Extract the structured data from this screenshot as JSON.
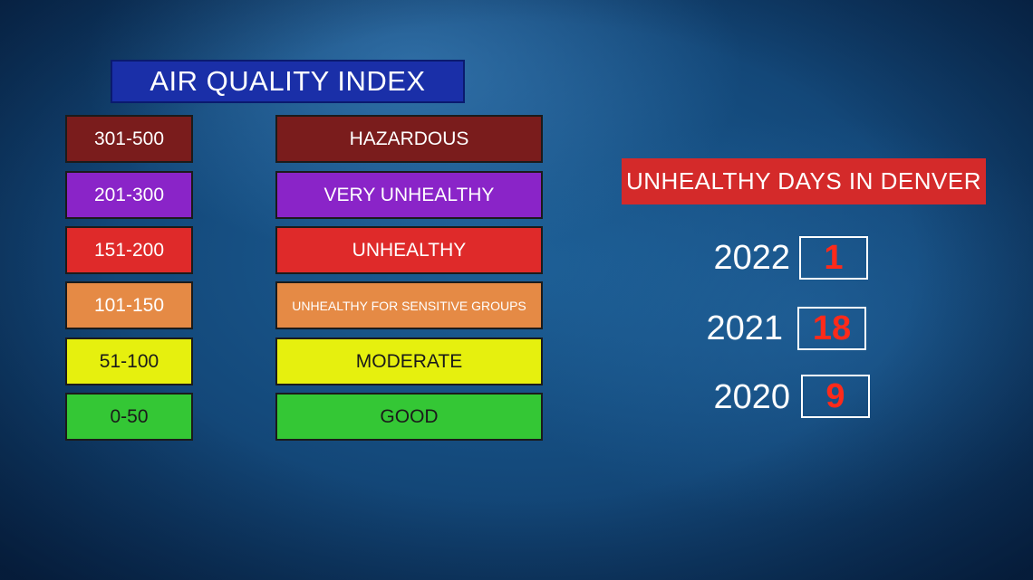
{
  "title": "AIR QUALITY INDEX",
  "levels": [
    {
      "range": "301-500",
      "category": "HAZARDOUS",
      "color": "#7a1c1c",
      "text_color": "#ffffff"
    },
    {
      "range": "201-300",
      "category": "VERY UNHEALTHY",
      "color": "#8a24c8",
      "text_color": "#ffffff"
    },
    {
      "range": "151-200",
      "category": "UNHEALTHY",
      "color": "#df2a2a",
      "text_color": "#ffffff"
    },
    {
      "range": "101-150",
      "category": "UNHEALTHY FOR SENSITIVE GROUPS",
      "color": "#e58a45",
      "text_color": "#ffffff"
    },
    {
      "range": "51-100",
      "category": "MODERATE",
      "color": "#e6f00e",
      "text_color": "#1a1a1a"
    },
    {
      "range": "0-50",
      "category": "GOOD",
      "color": "#34c735",
      "text_color": "#1a1a1a"
    }
  ],
  "denver": {
    "heading": "UNHEALTHY DAYS IN DENVER",
    "years": [
      {
        "year": "2022",
        "days": "1"
      },
      {
        "year": "2021",
        "days": "18"
      },
      {
        "year": "2020",
        "days": "9"
      }
    ]
  }
}
